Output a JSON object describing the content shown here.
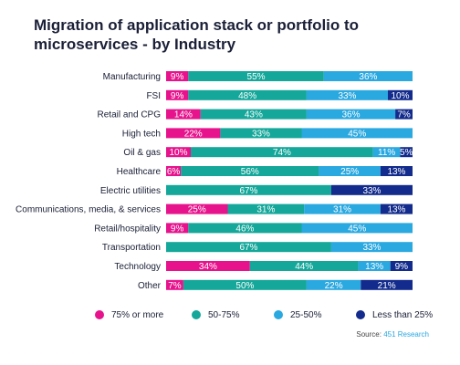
{
  "title": "Migration of application stack or portfolio to microservices - by Industry",
  "source": {
    "label": "Source:",
    "org": "451 Research"
  },
  "colors": {
    "75% or more": "#e6138c",
    "50-75%": "#14a79a",
    "25-50%": "#2aa8e0",
    "Less than 25%": "#122b8c"
  },
  "chart_data": {
    "type": "bar",
    "orientation": "horizontal",
    "stacked": true,
    "unit": "%",
    "categories": [
      "Manufacturing",
      "FSI",
      "Retail and CPG",
      "High tech",
      "Oil & gas",
      "Healthcare",
      "Electric utilities",
      "Communications, media, & services",
      "Retail/hospitality",
      "Transportation",
      "Technology",
      "Other"
    ],
    "series": [
      {
        "name": "75% or more",
        "values": [
          9,
          9,
          14,
          22,
          10,
          6,
          0,
          25,
          9,
          0,
          34,
          7
        ]
      },
      {
        "name": "50-75%",
        "values": [
          55,
          48,
          43,
          33,
          74,
          56,
          67,
          31,
          46,
          67,
          44,
          50
        ]
      },
      {
        "name": "25-50%",
        "values": [
          36,
          33,
          36,
          45,
          11,
          25,
          0,
          31,
          45,
          33,
          13,
          22
        ]
      },
      {
        "name": "Less than 25%",
        "values": [
          0,
          10,
          7,
          0,
          5,
          13,
          33,
          13,
          0,
          0,
          9,
          21
        ]
      }
    ],
    "xlim": [
      0,
      100
    ],
    "grid": false,
    "legend_position": "bottom"
  }
}
